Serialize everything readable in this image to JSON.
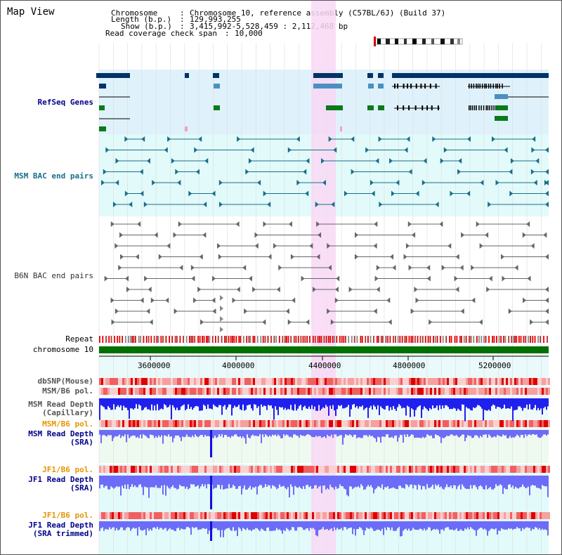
{
  "window": {
    "title": "Map View"
  },
  "header": {
    "chromosome_label": "Chromosome",
    "chromosome_value": "Chromosome 10, reference assembly (C57BL/6J) (Build 37)",
    "length_label": "Length (b.p.)",
    "length_value": "129,993,255",
    "show_label": "Show (b.p.)",
    "show_value": "3,415,992-5,528,459 : 2,112,468 bp",
    "coverage_label": "Read coverage check span",
    "coverage_value": "10,000"
  },
  "tracks": {
    "refseq": "RefSeq Genes",
    "msm_bac": "MSM BAC end pairs",
    "b6n_bac": "B6N BAC end pairs",
    "repeat": "Repeat",
    "chromosome": "chromosome 10",
    "dbsnp": "dbSNP(Mouse)",
    "msm_b6_pol": "MSM/B6 pol.",
    "msm_depth_cap_1": "MSM Read Depth",
    "msm_depth_cap_2": "(Capillary)",
    "msm_b6_pol_sra": "MSM/B6 pol.",
    "msm_depth_sra_1": "MSM Read Depth",
    "msm_depth_sra_2": "(SRA)",
    "jf1_b6_pol": "JF1/B6 pol.",
    "jf1_depth_sra_1": "JF1 Read Depth",
    "jf1_depth_sra_2": "(SRA)",
    "jf1_b6_pol_trim": "JF1/B6 pol.",
    "jf1_depth_trim_1": "JF1 Read Depth",
    "jf1_depth_trim_2": "(SRA trimmed)"
  },
  "axis": {
    "ticks": [
      "3600000",
      "4000000",
      "4400000",
      "4800000",
      "5200000"
    ]
  },
  "colors": {
    "refseq_bg": "#dff2fb",
    "msm_bg": "#e2fafa",
    "highlight": "#f8d8f4",
    "gene_dark": "#003366",
    "gene_mid": "#4a90c0",
    "gene_green": "#0a7a1a",
    "msm_line": "#1a6e8a",
    "b6n_line": "#666666",
    "chromosome": "#007000",
    "depth_capillary": "#2020ee",
    "depth_sra": "#6c6cf8",
    "label_blue": "#00008b",
    "label_teal": "#1a6e8a",
    "label_orange": "#e69500"
  }
}
